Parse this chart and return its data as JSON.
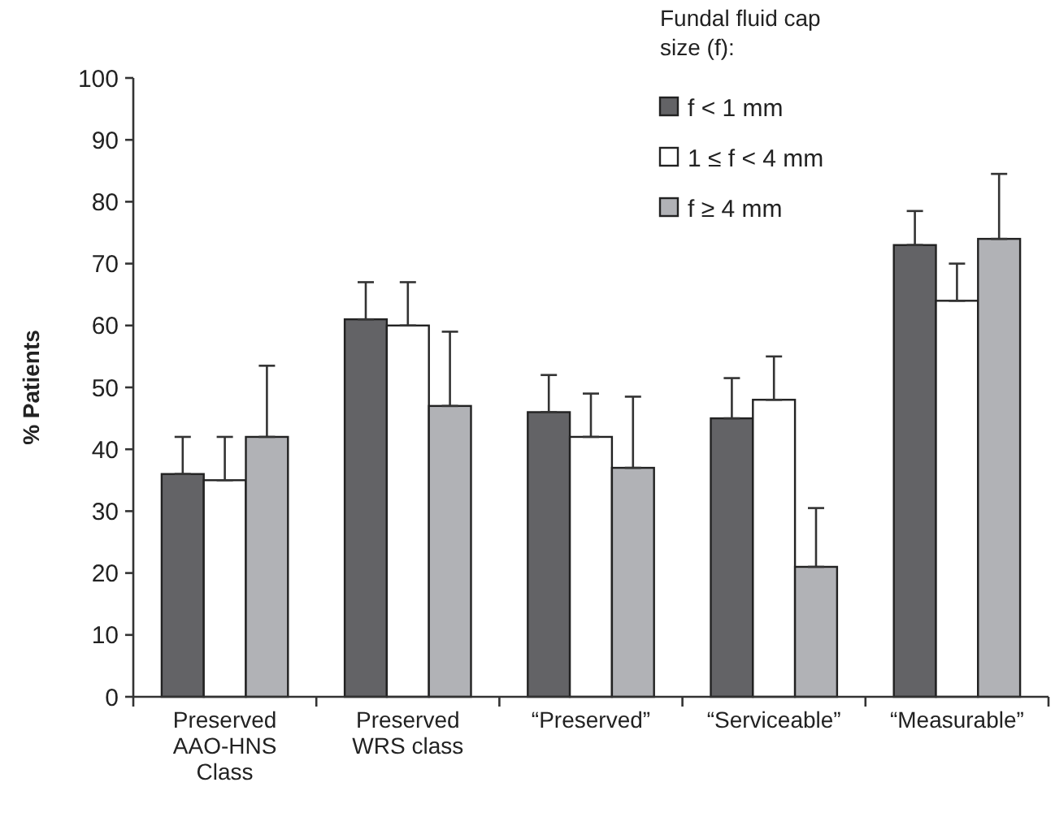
{
  "chart_data": {
    "type": "bar",
    "ylabel": "% Patients",
    "legend_title": "Fundal fluid cap size (f):",
    "legend": "top right",
    "grid": false,
    "categories": [
      "Preserved AAO-HNS Class",
      "Preserved WRS class",
      "“Preserved”",
      "“Serviceable”",
      "“Measurable”"
    ],
    "ylim": [
      0,
      100
    ],
    "yticks": [
      0,
      10,
      20,
      30,
      40,
      50,
      60,
      70,
      80,
      90,
      100
    ],
    "series": [
      {
        "name": "f < 1 mm",
        "color": "#636366",
        "values": [
          36,
          61,
          46,
          45,
          73
        ],
        "errors": [
          [
            36,
            42
          ],
          [
            61,
            67
          ],
          [
            46,
            52
          ],
          [
            45,
            51.5
          ],
          [
            73,
            78.5
          ]
        ]
      },
      {
        "name": "1 ≤ f < 4 mm",
        "color": "#ffffff",
        "values": [
          35,
          60,
          42,
          48,
          64
        ],
        "errors": [
          [
            35,
            42
          ],
          [
            60,
            67
          ],
          [
            42,
            49
          ],
          [
            48,
            55
          ],
          [
            64,
            70
          ]
        ]
      },
      {
        "name": "f ≥ 4 mm",
        "color": "#b1b2b6",
        "values": [
          42,
          47,
          37,
          21,
          74
        ],
        "errors": [
          [
            42,
            53.5
          ],
          [
            47,
            59
          ],
          [
            37,
            48.5
          ],
          [
            21,
            30.5
          ],
          [
            74,
            84.5
          ]
        ]
      }
    ]
  }
}
